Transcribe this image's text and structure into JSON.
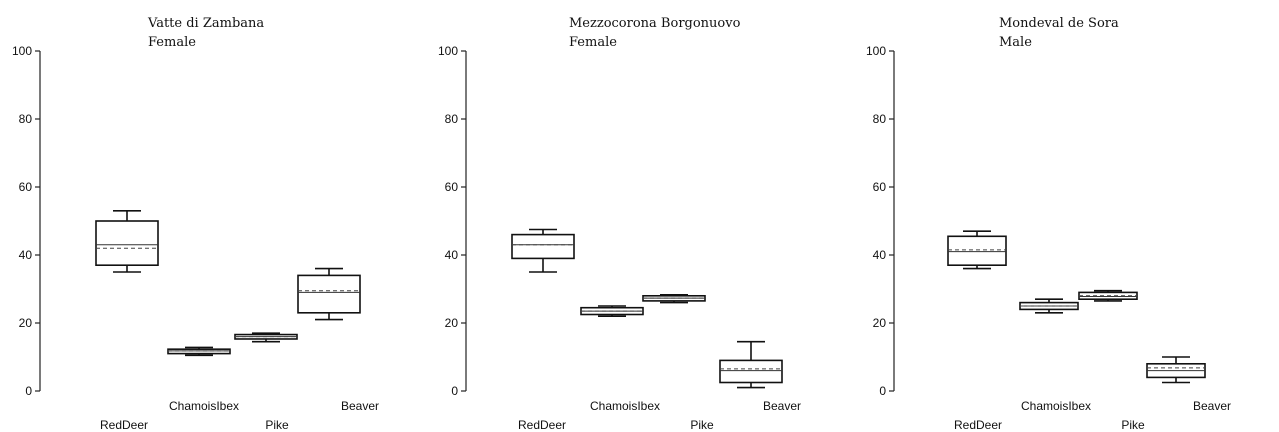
{
  "chart_data": [
    {
      "type": "box",
      "title": "Vatte di Zambana",
      "subtitle": "Female",
      "ylim": [
        0,
        100
      ],
      "yticks": [
        "0",
        "20",
        "40",
        "60",
        "80",
        "100"
      ],
      "categories": [
        "RedDeer",
        "ChamoisIbex",
        "Pike",
        "Beaver"
      ],
      "boxes": [
        {
          "whisker_low": 35,
          "q1": 37,
          "median": 43,
          "mean": 42,
          "q3": 50,
          "whisker_high": 53
        },
        {
          "whisker_low": 10.5,
          "q1": 11,
          "median": 11.8,
          "mean": 11.8,
          "q3": 12.3,
          "whisker_high": 12.8
        },
        {
          "whisker_low": 14.5,
          "q1": 15.3,
          "median": 16,
          "mean": 16,
          "q3": 16.6,
          "whisker_high": 17
        },
        {
          "whisker_low": 21,
          "q1": 23,
          "median": 29,
          "mean": 29.5,
          "q3": 34,
          "whisker_high": 36
        }
      ]
    },
    {
      "type": "box",
      "title": "Mezzocorona Borgonuovo",
      "subtitle": "Female",
      "ylim": [
        0,
        100
      ],
      "yticks": [
        "0",
        "20",
        "40",
        "60",
        "80",
        "100"
      ],
      "categories": [
        "RedDeer",
        "ChamoisIbex",
        "Pike",
        "Beaver"
      ],
      "boxes": [
        {
          "whisker_low": 35,
          "q1": 39,
          "median": 43,
          "mean": 43,
          "q3": 46,
          "whisker_high": 47.5
        },
        {
          "whisker_low": 22,
          "q1": 22.5,
          "median": 23.5,
          "mean": 23.5,
          "q3": 24.5,
          "whisker_high": 25
        },
        {
          "whisker_low": 26,
          "q1": 26.5,
          "median": 27.3,
          "mean": 27.3,
          "q3": 28,
          "whisker_high": 28.3
        },
        {
          "whisker_low": 1,
          "q1": 2.5,
          "median": 6,
          "mean": 6.5,
          "q3": 9,
          "whisker_high": 14.5
        }
      ]
    },
    {
      "type": "box",
      "title": "Mondeval de Sora",
      "subtitle": "Male",
      "ylim": [
        0,
        100
      ],
      "yticks": [
        "0",
        "20",
        "40",
        "60",
        "80",
        "100"
      ],
      "categories": [
        "RedDeer",
        "ChamoisIbex",
        "Pike",
        "Beaver"
      ],
      "boxes": [
        {
          "whisker_low": 36,
          "q1": 37,
          "median": 41,
          "mean": 41.5,
          "q3": 45.5,
          "whisker_high": 47
        },
        {
          "whisker_low": 23,
          "q1": 24,
          "median": 25,
          "mean": 25,
          "q3": 26,
          "whisker_high": 27
        },
        {
          "whisker_low": 26.5,
          "q1": 27,
          "median": 27.8,
          "mean": 28,
          "q3": 29,
          "whisker_high": 29.5
        },
        {
          "whisker_low": 2.5,
          "q1": 4,
          "median": 6,
          "mean": 6.8,
          "q3": 8,
          "whisker_high": 10
        }
      ]
    }
  ]
}
